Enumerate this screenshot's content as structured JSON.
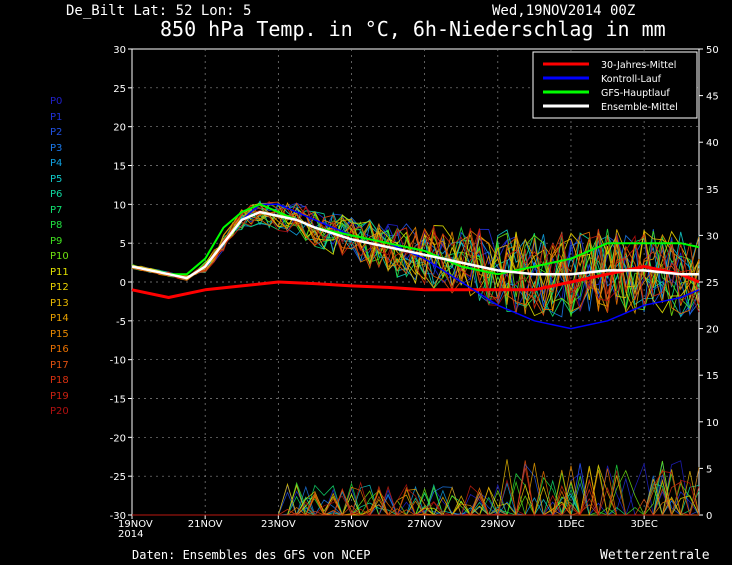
{
  "header": {
    "station": "De_Bilt  Lat: 52 Lon: 5",
    "date": "Wed,19NOV2014 00Z",
    "title": "850 hPa Temp. in °C, 6h-Niederschlag in mm"
  },
  "footer": {
    "source": "Daten: Ensembles des GFS von NCEP",
    "brand": "Wetterzentrale"
  },
  "members": [
    {
      "label": "P0",
      "color": "#2020c8"
    },
    {
      "label": "P1",
      "color": "#2030d8"
    },
    {
      "label": "P2",
      "color": "#2050e0"
    },
    {
      "label": "P3",
      "color": "#1a78e8"
    },
    {
      "label": "P4",
      "color": "#10a0e0"
    },
    {
      "label": "P5",
      "color": "#10c8c8"
    },
    {
      "label": "P6",
      "color": "#10d8a0"
    },
    {
      "label": "P7",
      "color": "#10e070"
    },
    {
      "label": "P8",
      "color": "#20e040"
    },
    {
      "label": "P9",
      "color": "#40e020"
    },
    {
      "label": "P10",
      "color": "#70e010"
    },
    {
      "label": "P11",
      "color": "#e0e000"
    },
    {
      "label": "P12",
      "color": "#e8d000"
    },
    {
      "label": "P13",
      "color": "#e8b800"
    },
    {
      "label": "P14",
      "color": "#e8a000"
    },
    {
      "label": "P15",
      "color": "#e88800"
    },
    {
      "label": "P16",
      "color": "#e87000"
    },
    {
      "label": "P17",
      "color": "#e05010"
    },
    {
      "label": "P18",
      "color": "#d83010"
    },
    {
      "label": "P19",
      "color": "#c82010"
    },
    {
      "label": "P20",
      "color": "#b01010"
    }
  ],
  "chart_data": {
    "type": "line",
    "x_dates": [
      "19NOV\n2014",
      "21NOV",
      "23NOV",
      "25NOV",
      "27NOV",
      "29NOV",
      "1DEC",
      "3DEC"
    ],
    "x_days": [
      0,
      2,
      4,
      6,
      8,
      10,
      12,
      14
    ],
    "xlim_days": [
      0,
      15.5
    ],
    "y_left": {
      "label": "850 hPa Temp. in °C",
      "ticks": [
        30,
        25,
        20,
        15,
        10,
        5,
        0,
        -5,
        -10,
        -15,
        -20,
        -25,
        -30
      ],
      "lim": [
        -30,
        30
      ]
    },
    "y_right": {
      "label": "6h-Niederschlag in mm",
      "ticks": [
        50,
        45,
        40,
        35,
        30,
        25,
        20,
        15,
        10,
        5,
        0
      ],
      "lim": [
        0,
        50
      ]
    },
    "grid": true,
    "legend": {
      "placement": "top-right",
      "entries": [
        {
          "name": "30-Jahres-Mittel",
          "color": "#ff0000"
        },
        {
          "name": "Kontroll-Lauf",
          "color": "#0000ff"
        },
        {
          "name": "GFS-Hauptlauf",
          "color": "#00ff00"
        },
        {
          "name": "Ensemble-Mittel",
          "color": "#ffffff"
        }
      ]
    },
    "series": [
      {
        "name": "30-Jahres-Mittel",
        "color": "#ff0000",
        "width": 3,
        "x": [
          0,
          1,
          2,
          3,
          4,
          5,
          6,
          7,
          8,
          9,
          10,
          11,
          12,
          13,
          14,
          15,
          15.5
        ],
        "y": [
          -1,
          -2,
          -1,
          -0.5,
          0,
          -0.2,
          -0.5,
          -0.7,
          -1,
          -1,
          -1,
          -1,
          0,
          1,
          2,
          1,
          0
        ]
      },
      {
        "name": "Kontroll-Lauf",
        "color": "#0000ff",
        "width": 1.5,
        "x": [
          0,
          1,
          1.5,
          2,
          2.5,
          3,
          3.5,
          4,
          4.5,
          5,
          6,
          7,
          8,
          9,
          10,
          11,
          12,
          13,
          14,
          15,
          15.5
        ],
        "y": [
          2,
          1,
          0.5,
          2,
          5,
          8,
          10,
          10,
          9,
          8,
          6,
          5,
          3,
          0,
          -3,
          -5,
          -6,
          -5,
          -3,
          -2,
          -1
        ]
      },
      {
        "name": "GFS-Hauptlauf",
        "color": "#00ff00",
        "width": 2,
        "x": [
          0,
          1,
          1.5,
          2,
          2.5,
          3,
          3.5,
          4,
          4.5,
          5,
          6,
          7,
          8,
          9,
          10,
          11,
          12,
          13,
          14,
          15,
          15.5
        ],
        "y": [
          2,
          1,
          1,
          3,
          7,
          9,
          10,
          9,
          8,
          7,
          6,
          5,
          4,
          2,
          1,
          2,
          3,
          5,
          5,
          5,
          4.5
        ]
      },
      {
        "name": "Ensemble-Mittel",
        "color": "#ffffff",
        "width": 2.5,
        "x": [
          0,
          1,
          1.5,
          2,
          2.5,
          3,
          3.5,
          4,
          4.5,
          5,
          6,
          7,
          8,
          9,
          10,
          11,
          12,
          13,
          14,
          15,
          15.5
        ],
        "y": [
          2,
          1,
          0.5,
          2,
          5,
          8,
          9,
          8.5,
          8,
          7,
          5.5,
          4.5,
          3.5,
          2.5,
          1.5,
          1,
          1,
          1.5,
          1.5,
          1,
          1
        ]
      }
    ]
  }
}
